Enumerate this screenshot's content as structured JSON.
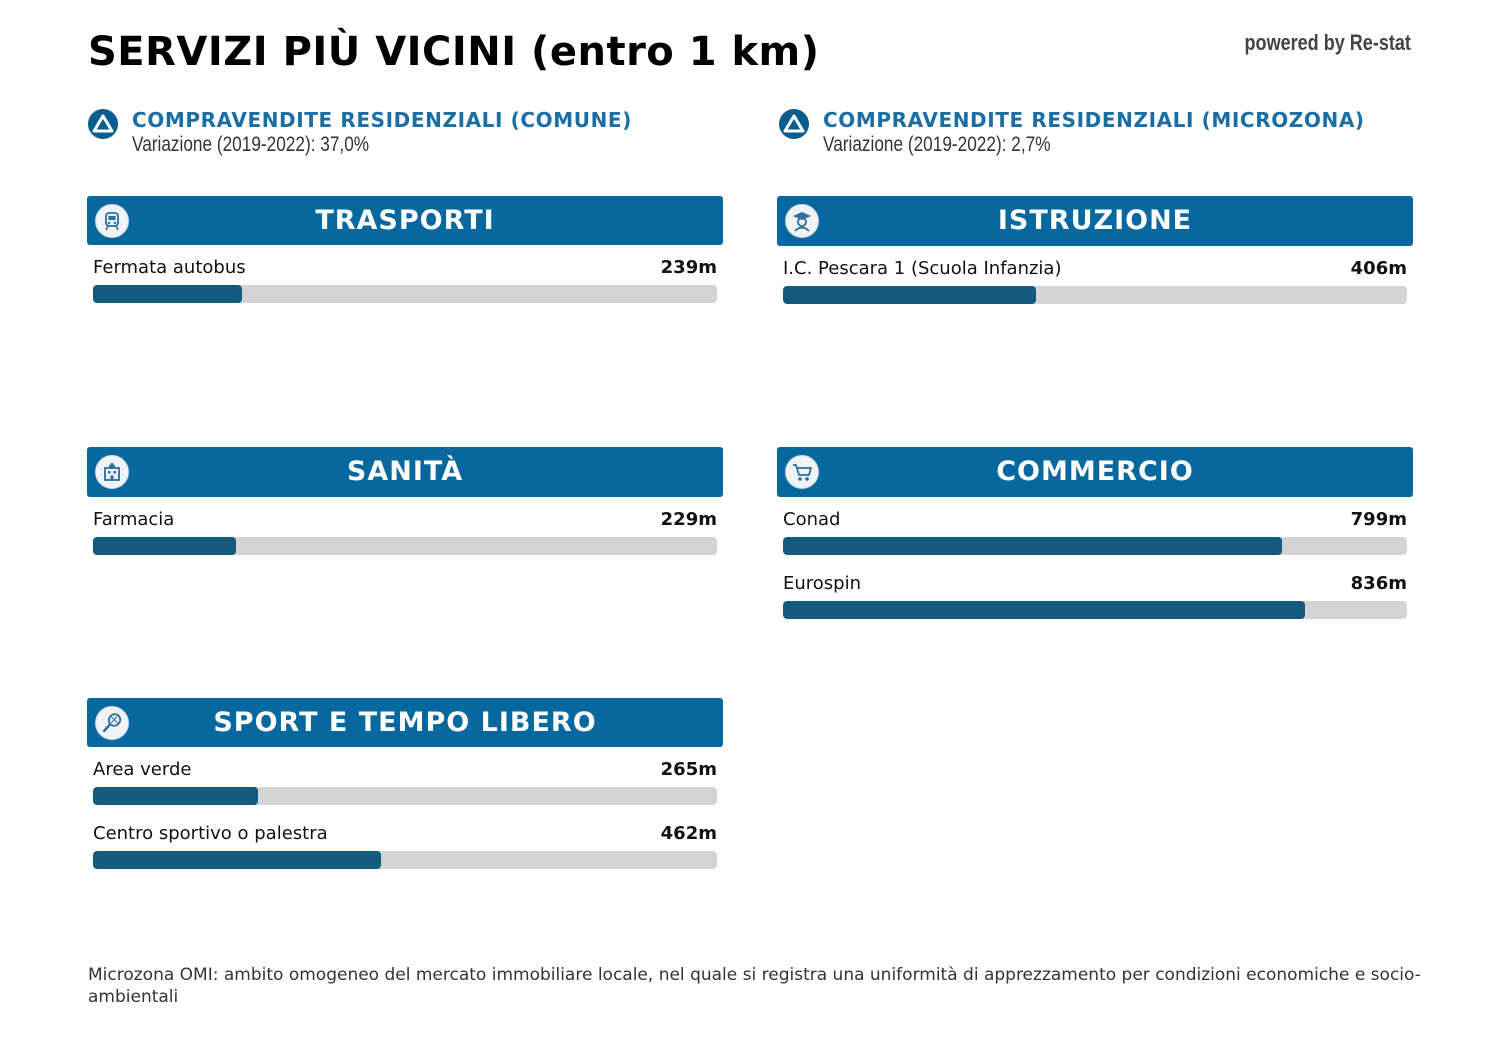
{
  "title": "SERVIZI PIÙ VICINI (entro 1 km)",
  "powered_by": "powered by Re-stat",
  "colors": {
    "header": "#06689e",
    "bar_fill": "#135a7e",
    "bar_track": "#d4d4d4",
    "stat_title": "#1a6ea3"
  },
  "stats": [
    {
      "icon": "triangle-up-icon",
      "title": "COMPRAVENDITE RESIDENZIALI (COMUNE)",
      "subtitle": "Variazione (2019-2022): 37,0%"
    },
    {
      "icon": "triangle-up-icon",
      "title": "COMPRAVENDITE RESIDENZIALI (MICROZONA)",
      "subtitle": "Variazione (2019-2022): 2,7%"
    }
  ],
  "categories": {
    "trasporti": {
      "title": "TRASPORTI",
      "icon": "train-icon",
      "items": [
        {
          "label": "Fermata autobus",
          "distance": "239m",
          "fraction": 0.239
        }
      ]
    },
    "istruzione": {
      "title": "ISTRUZIONE",
      "icon": "student-icon",
      "items": [
        {
          "label": "I.C. Pescara 1 (Scuola Infanzia)",
          "distance": "406m",
          "fraction": 0.406
        }
      ]
    },
    "sanita": {
      "title": "SANITÀ",
      "icon": "hospital-icon",
      "items": [
        {
          "label": "Farmacia",
          "distance": "229m",
          "fraction": 0.229
        }
      ]
    },
    "commercio": {
      "title": "COMMERCIO",
      "icon": "shopping-cart-icon",
      "items": [
        {
          "label": "Conad",
          "distance": "799m",
          "fraction": 0.799
        },
        {
          "label": "Eurospin",
          "distance": "836m",
          "fraction": 0.836
        }
      ]
    },
    "sport": {
      "title": "SPORT E TEMPO LIBERO",
      "icon": "tennis-racket-icon",
      "items": [
        {
          "label": "Area verde",
          "distance": "265m",
          "fraction": 0.265
        },
        {
          "label": "Centro sportivo o palestra",
          "distance": "462m",
          "fraction": 0.462
        }
      ]
    }
  },
  "footnote": "Microzona OMI: ambito omogeneo del mercato immobiliare locale, nel quale si registra una uniformità di apprezzamento per condizioni economiche e socio-ambientali"
}
